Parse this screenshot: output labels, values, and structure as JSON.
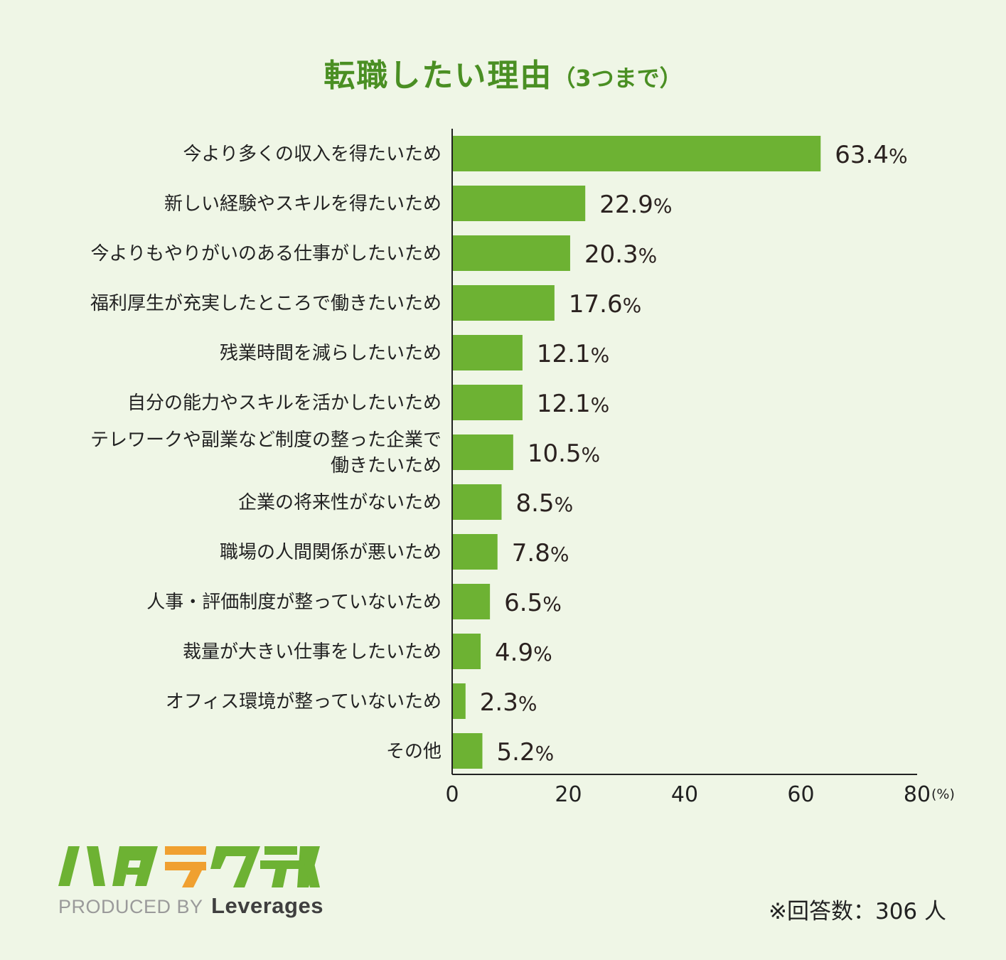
{
  "title": {
    "main": "転職したい理由",
    "sub": "（3つまで）"
  },
  "chart_data": {
    "type": "bar",
    "orientation": "horizontal",
    "title": "転職したい理由（3つまで）",
    "categories": [
      [
        "今より多くの収入を得たいため"
      ],
      [
        "新しい経験やスキルを得たいため"
      ],
      [
        "今よりもやりがいのある仕事がしたいため"
      ],
      [
        "福利厚生が充実したところで働きたいため"
      ],
      [
        "残業時間を減らしたいため"
      ],
      [
        "自分の能力やスキルを活かしたいため"
      ],
      [
        "テレワークや副業など制度の整った企業で",
        "働きたいため"
      ],
      [
        "企業の将来性がないため"
      ],
      [
        "職場の人間関係が悪いため"
      ],
      [
        "人事・評価制度が整っていないため"
      ],
      [
        "裁量が大きい仕事をしたいため"
      ],
      [
        "オフィス環境が整っていないため"
      ],
      [
        "その他"
      ]
    ],
    "values": [
      63.4,
      22.9,
      20.3,
      17.6,
      12.1,
      12.1,
      10.5,
      8.5,
      7.8,
      6.5,
      4.9,
      2.3,
      5.2
    ],
    "value_suffix": "%",
    "xlim": [
      0,
      80
    ],
    "xticks": [
      "0",
      "20",
      "40",
      "60",
      "80"
    ],
    "x_unit_label": "(%)",
    "bar_color": "#6db233"
  },
  "logo": {
    "name": "ハタラクティブ"
  },
  "footer": {
    "produced_by": "PRODUCED BY",
    "brand": "Leverages",
    "note": "※回答数：306 人"
  }
}
